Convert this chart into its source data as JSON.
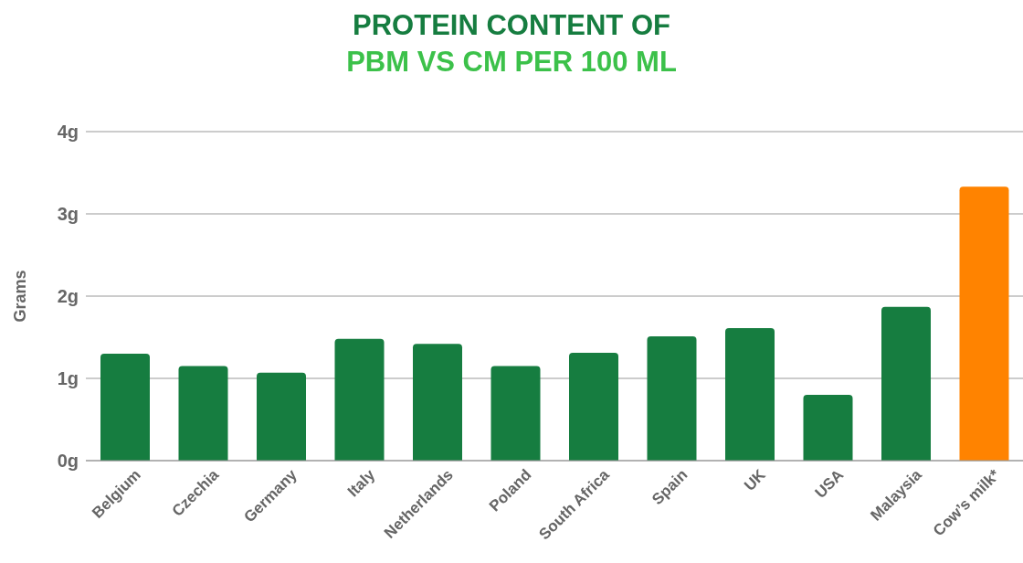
{
  "chart_data": {
    "type": "bar",
    "title": "PROTEIN CONTENT OF",
    "subtitle": "PBM VS CM PER 100 ML",
    "ylabel": "Grams",
    "categories": [
      "Belgium",
      "Czechia",
      "Germany",
      "Italy",
      "Netherlands",
      "Poland",
      "South Africa",
      "Spain",
      "UK",
      "USA",
      "Malaysia",
      "Cow’s milk*"
    ],
    "values": [
      1.3,
      1.15,
      1.07,
      1.48,
      1.42,
      1.15,
      1.31,
      1.51,
      1.61,
      0.8,
      1.87,
      3.33
    ],
    "colors": [
      "#167d40",
      "#167d40",
      "#167d40",
      "#167d40",
      "#167d40",
      "#167d40",
      "#167d40",
      "#167d40",
      "#167d40",
      "#167d40",
      "#167d40",
      "#ff8300"
    ],
    "ylim": [
      0,
      4
    ],
    "yticks": [
      {
        "value": 0,
        "label": "0g"
      },
      {
        "value": 1,
        "label": "1g"
      },
      {
        "value": 2,
        "label": "2g"
      },
      {
        "value": 3,
        "label": "3g"
      },
      {
        "value": 4,
        "label": "4g"
      }
    ],
    "grid": "y",
    "legend": false
  }
}
